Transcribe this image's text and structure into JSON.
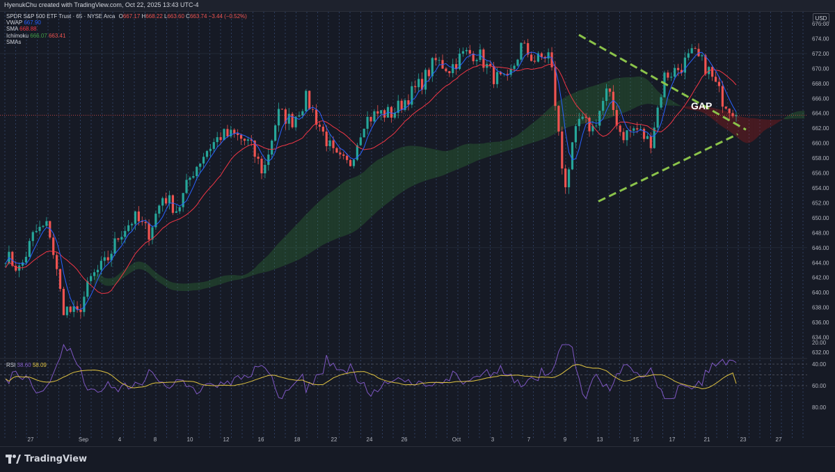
{
  "header": {
    "caption": "HyenukChu created with TradingView.com, Oct 22, 2025 13:43 UTC-4"
  },
  "legend": {
    "symbol": "SPDR S&P 500 ETF Trust · 65 · NYSE Arca",
    "ohlc": {
      "o_label": "O",
      "o": "667.17",
      "h_label": "H",
      "h": "668.22",
      "l_label": "L",
      "l": "663.60",
      "c_label": "C",
      "c": "663.74",
      "chg": "−3.44 (−0.52%)"
    },
    "vwap_label": "VWAP",
    "vwap": "667.90",
    "sma_label": "SMA",
    "sma": "668.88",
    "ichimoku_label": "Ichimoku",
    "ichimoku_a": "666.07",
    "ichimoku_b": "663.41",
    "smas_label": "SMAs"
  },
  "currency_button": "USD",
  "rsi_legend": {
    "label": "RSI",
    "value": "38.60",
    "ma": "58.09"
  },
  "annotation": {
    "text": "GAP"
  },
  "brand": {
    "name": "TradingView"
  },
  "colors": {
    "up": "#26a69a",
    "down": "#ef5350",
    "vwap": "#2962ff",
    "sma": "#f23645",
    "rsi": "#7e57c2",
    "rsi_ma": "#e0c341",
    "trendline": "#8bc34a",
    "price_line": "#ef5350"
  },
  "chart_data": {
    "type": "candlestick",
    "price_axis": {
      "min": 631,
      "max": 677,
      "ticks": [
        "676.00",
        "674.00",
        "672.00",
        "670.00",
        "668.00",
        "666.00",
        "664.00",
        "662.00",
        "660.00",
        "658.00",
        "656.00",
        "654.00",
        "652.00",
        "650.00",
        "648.00",
        "646.00",
        "644.00",
        "642.00",
        "640.00",
        "638.00",
        "636.00",
        "634.00",
        "632.00"
      ]
    },
    "current_price": 663.74,
    "time_axis": {
      "labels": [
        "27",
        "Sep",
        "4",
        "8",
        "10",
        "12",
        "16",
        "18",
        "22",
        "24",
        "26",
        "Oct",
        "3",
        "7",
        "9",
        "13",
        "15",
        "17",
        "21",
        "23",
        "27"
      ]
    },
    "candles_close_by_segment": [
      645,
      643,
      648,
      649,
      638,
      637,
      642,
      644,
      648,
      650,
      648,
      653,
      651,
      656,
      659,
      661,
      661,
      660,
      656,
      664,
      663,
      666,
      662,
      658,
      657,
      663,
      664,
      664,
      666,
      668,
      671,
      670,
      672,
      672,
      669,
      668,
      673,
      671,
      672,
      654,
      663,
      662,
      667,
      661,
      662,
      660,
      669,
      670,
      672,
      670,
      666,
      664
    ],
    "rsi": {
      "range": [
        20,
        80
      ],
      "ticks": [
        "80.00",
        "60.00",
        "40.00",
        "20.00"
      ],
      "band": [
        40,
        60
      ],
      "value": 38.6,
      "ma": 58.09
    }
  }
}
